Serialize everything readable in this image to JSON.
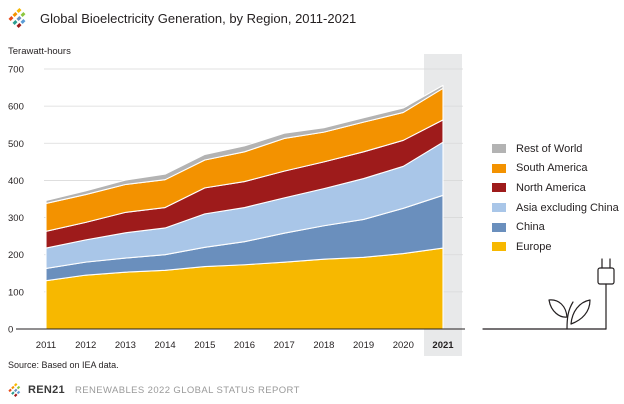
{
  "header": {
    "title": "Global Bioelectricity Generation, by Region, 2011-2021",
    "unit_label": "Terawatt-hours"
  },
  "chart_data": {
    "type": "area",
    "stacked": true,
    "title": "Global Bioelectricity Generation, by Region, 2011-2021",
    "ylabel": "Terawatt-hours",
    "xlabel": "",
    "ylim": [
      0,
      700
    ],
    "yticks": [
      0,
      100,
      200,
      300,
      400,
      500,
      600,
      700
    ],
    "x": [
      "2011",
      "2012",
      "2013",
      "2014",
      "2015",
      "2016",
      "2017",
      "2018",
      "2019",
      "2020",
      "2021"
    ],
    "highlight": "2021",
    "grid": true,
    "legend_position": "right",
    "series": [
      {
        "name": "Europe",
        "color": "#f7b800",
        "values": [
          130,
          145,
          153,
          158,
          168,
          173,
          180,
          188,
          193,
          203,
          218
        ]
      },
      {
        "name": "China",
        "color": "#6a8fbd",
        "values": [
          33,
          35,
          38,
          42,
          52,
          62,
          78,
          90,
          102,
          122,
          142
        ]
      },
      {
        "name": "Asia excluding China",
        "color": "#a9c6e8",
        "values": [
          55,
          60,
          68,
          72,
          90,
          92,
          95,
          100,
          110,
          113,
          143
        ]
      },
      {
        "name": "North America",
        "color": "#9e1b1b",
        "values": [
          45,
          47,
          55,
          55,
          70,
          70,
          72,
          72,
          72,
          70,
          60
        ]
      },
      {
        "name": "South America",
        "color": "#f39200",
        "values": [
          75,
          75,
          75,
          75,
          75,
          80,
          88,
          80,
          80,
          75,
          85
        ]
      },
      {
        "name": "Rest of World",
        "color": "#b3b3b3",
        "values": [
          8,
          10,
          12,
          15,
          15,
          16,
          14,
          12,
          12,
          12,
          8
        ]
      }
    ]
  },
  "legend": [
    {
      "label": "Rest of World",
      "color": "#b3b3b3"
    },
    {
      "label": "South America",
      "color": "#f39200"
    },
    {
      "label": "North America",
      "color": "#9e1b1b"
    },
    {
      "label": "Asia excluding China",
      "color": "#a9c6e8"
    },
    {
      "label": "China",
      "color": "#6a8fbd"
    },
    {
      "label": "Europe",
      "color": "#f7b800"
    }
  ],
  "source": "Source: Based on IEA data.",
  "footer": {
    "brand": "REN21",
    "report": "RENEWABLES 2022 GLOBAL STATUS REPORT"
  }
}
